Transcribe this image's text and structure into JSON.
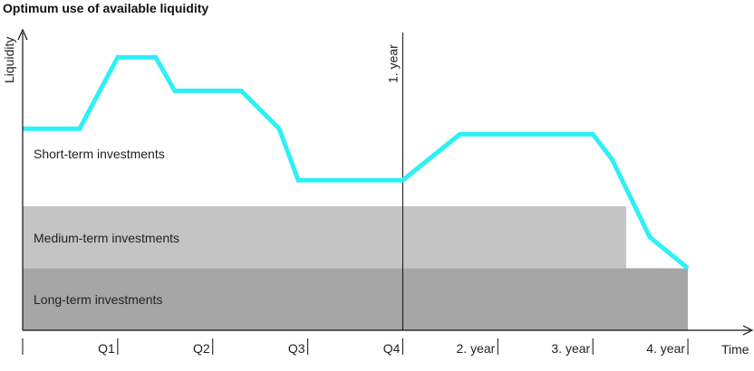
{
  "chart_data": {
    "type": "area",
    "title": "Optimum use of available liquidity",
    "xlabel": "Time",
    "ylabel": "Liquidity",
    "x_ticks": [
      "",
      "Q1",
      "Q2",
      "Q3",
      "Q4",
      "2. year",
      "3. year",
      "4. year"
    ],
    "marker": {
      "label": "1. year",
      "x": 4
    },
    "bands": [
      {
        "name": "Long-term investments",
        "color": "#a6a6a6",
        "x_end": 7,
        "y_from": 0,
        "y_to": 1
      },
      {
        "name": "Medium-term investments",
        "color": "#c4c4c4",
        "x_end": 6.35,
        "y_from": 1,
        "y_to": 2
      }
    ],
    "line": {
      "name": "Short-term investments",
      "color": "#2ef0f5",
      "x": [
        0,
        0.6,
        1.0,
        1.4,
        1.6,
        2.3,
        2.7,
        2.9,
        4.0,
        4.6,
        6.0,
        6.2,
        6.6,
        7.0
      ],
      "y": [
        3.25,
        3.25,
        4.4,
        4.4,
        3.86,
        3.86,
        3.25,
        2.42,
        2.42,
        3.16,
        3.16,
        2.76,
        1.5,
        1.0
      ]
    },
    "xlim": [
      0,
      7.4
    ],
    "ylim": [
      0,
      4.8
    ]
  }
}
